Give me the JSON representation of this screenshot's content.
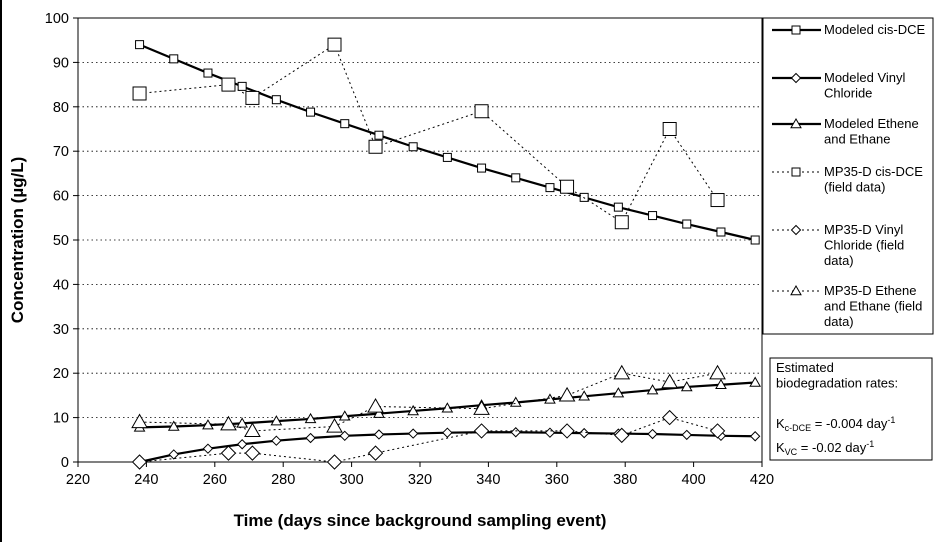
{
  "chart_data": {
    "type": "line",
    "title": "",
    "xlabel": "Time (days since background sampling event)",
    "ylabel": "Concentration (µg/L)",
    "xlim": [
      220,
      420
    ],
    "ylim": [
      0,
      100
    ],
    "xticks": [
      220,
      240,
      260,
      280,
      300,
      320,
      340,
      360,
      380,
      400,
      420
    ],
    "yticks": [
      0,
      10,
      20,
      30,
      40,
      50,
      60,
      70,
      80,
      90,
      100
    ],
    "grid": "horizontal dotted",
    "legend_position": "right",
    "series": [
      {
        "name": "Modeled cis-DCE",
        "style": "solid",
        "marker": "square",
        "x": [
          238,
          248,
          258,
          268,
          278,
          288,
          298,
          308,
          318,
          328,
          338,
          348,
          358,
          368,
          378,
          388,
          398,
          408,
          418
        ],
        "y": [
          94,
          90.8,
          87.6,
          84.6,
          81.6,
          78.8,
          76.2,
          73.6,
          71.0,
          68.6,
          66.2,
          64.0,
          61.8,
          59.6,
          57.4,
          55.5,
          53.6,
          51.8,
          50.0
        ]
      },
      {
        "name": "Modeled Vinyl Chloride",
        "style": "solid",
        "marker": "diamond",
        "x": [
          238,
          248,
          258,
          268,
          278,
          288,
          298,
          308,
          318,
          328,
          338,
          348,
          358,
          368,
          378,
          388,
          398,
          408,
          418
        ],
        "y": [
          0,
          1.7,
          3.0,
          4.0,
          4.8,
          5.4,
          5.9,
          6.2,
          6.4,
          6.6,
          6.7,
          6.7,
          6.6,
          6.5,
          6.4,
          6.3,
          6.1,
          5.9,
          5.8
        ]
      },
      {
        "name": "Modeled Ethene and Ethane",
        "style": "solid",
        "marker": "triangle",
        "x": [
          238,
          248,
          258,
          268,
          278,
          288,
          298,
          308,
          318,
          328,
          338,
          348,
          358,
          368,
          378,
          388,
          398,
          408,
          418
        ],
        "y": [
          7.8,
          8.0,
          8.3,
          8.7,
          9.2,
          9.7,
          10.3,
          10.9,
          11.5,
          12.1,
          12.8,
          13.4,
          14.1,
          14.8,
          15.5,
          16.2,
          16.9,
          17.4,
          17.9
        ]
      },
      {
        "name": "MP35-D cis-DCE (field data)",
        "style": "dotted",
        "marker": "square-large",
        "x": [
          238,
          264,
          271,
          295,
          307,
          338,
          363,
          379,
          393,
          407
        ],
        "y": [
          83,
          85,
          82,
          94,
          71,
          79,
          62,
          54,
          75,
          59
        ]
      },
      {
        "name": "MP35-D Vinyl Chloride (field data)",
        "style": "dotted",
        "marker": "diamond-large",
        "x": [
          238,
          264,
          271,
          295,
          307,
          338,
          363,
          379,
          393,
          407
        ],
        "y": [
          0,
          2,
          2,
          0,
          2,
          7,
          7,
          6,
          10,
          7
        ]
      },
      {
        "name": "MP35-D Ethene and Ethane (field data)",
        "style": "dotted",
        "marker": "triangle-large",
        "x": [
          238,
          264,
          271,
          295,
          307,
          338,
          363,
          379,
          393,
          407
        ],
        "y": [
          9,
          8.5,
          7,
          8,
          12.5,
          12,
          15,
          20,
          18,
          20
        ]
      }
    ],
    "legend": {
      "entries": [
        [
          "Modeled cis-DCE"
        ],
        [
          "Modeled Vinyl",
          "Chloride"
        ],
        [
          "Modeled Ethene",
          "and Ethane"
        ],
        [
          "MP35-D cis-DCE",
          "(field data)"
        ],
        [
          "MP35-D Vinyl",
          "Chloride (field",
          "data)"
        ],
        [
          "MP35-D Ethene",
          "and Ethane (field",
          "data)"
        ]
      ]
    },
    "annotations": {
      "rates_heading": [
        "Estimated",
        "biodegradation rates:"
      ],
      "k_dce": {
        "prefix": "K",
        "sub": "c-DCE",
        "value": " = -0.004 day",
        "sup": "-1"
      },
      "k_vc": {
        "prefix": "K",
        "sub": "VC",
        "value": " = -0.02 day",
        "sup": "-1"
      }
    }
  }
}
